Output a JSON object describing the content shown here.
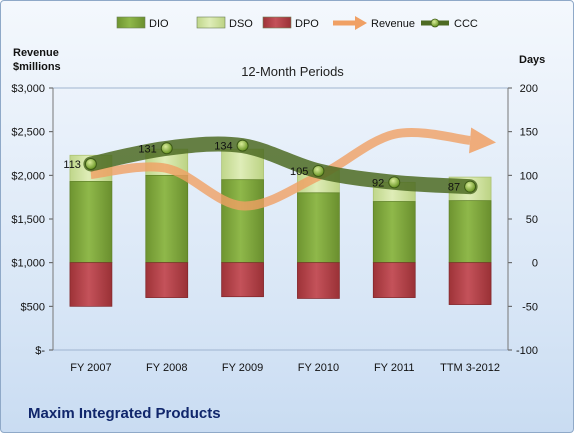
{
  "company_title": "Maxim Integrated Products",
  "chart_data": {
    "type": "bar",
    "title": "12-Month Periods",
    "left_axis_label": [
      "Revenue",
      "$millions"
    ],
    "right_axis_label": "Days",
    "categories": [
      "FY 2007",
      "FY 2008",
      "FY 2009",
      "FY 2010",
      "FY 2011",
      "TTM 3-2012"
    ],
    "left_axis": {
      "min": 0,
      "max": 3000,
      "step": 500,
      "tick_labels": [
        "$-",
        "$500",
        "$1,000",
        "$1,500",
        "$2,000",
        "$2,500",
        "$3,000"
      ]
    },
    "right_axis": {
      "min": -100,
      "max": 200,
      "step": 50,
      "tick_labels": [
        "-100",
        "-50",
        "0",
        "50",
        "100",
        "150",
        "200"
      ]
    },
    "legend": {
      "placement": "top",
      "items": [
        {
          "label": "DIO",
          "kind": "box",
          "color": "#7fa63c"
        },
        {
          "label": "DSO",
          "kind": "box",
          "color": "#cfe1a2"
        },
        {
          "label": "DPO",
          "kind": "box",
          "color": "#b7444a"
        },
        {
          "label": "Revenue",
          "kind": "arrow",
          "color": "#f0a064"
        },
        {
          "label": "CCC",
          "kind": "line-marker",
          "color": "#4e6b23"
        }
      ]
    },
    "series": [
      {
        "name": "DIO",
        "axis": "right",
        "values": [
          93,
          100,
          95,
          80,
          70,
          71
        ],
        "color": "#7fa63c"
      },
      {
        "name": "DSO",
        "axis": "right",
        "values": [
          30,
          30,
          35,
          26,
          22,
          27
        ],
        "color": "#cfe1a2"
      },
      {
        "name": "DPO",
        "axis": "right",
        "values": [
          -50,
          -40,
          -39,
          -41,
          -40,
          -48
        ],
        "color": "#b7444a"
      },
      {
        "name": "Revenue",
        "axis": "left",
        "values": [
          2010,
          2080,
          1650,
          1990,
          2470,
          2400
        ],
        "color": "#f0a064"
      },
      {
        "name": "CCC",
        "axis": "right",
        "values": [
          113,
          131,
          134,
          105,
          92,
          87
        ],
        "color": "#4e6b23"
      }
    ],
    "ccc_data_labels": [
      "113",
      "131",
      "134",
      "105",
      "92",
      "87"
    ]
  }
}
